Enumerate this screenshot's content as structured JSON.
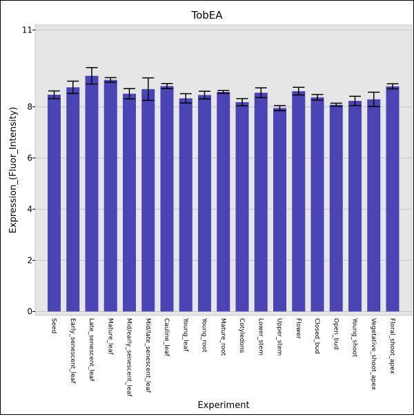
{
  "chart_data": {
    "type": "bar",
    "title": "TobEA",
    "xlabel": "Experiment",
    "ylabel": "Expression_(Fluor_Intensity)",
    "ylim": [
      -0.15,
      11.2
    ],
    "yticks": [
      0,
      2,
      4,
      6,
      8,
      11
    ],
    "grid": true,
    "colors": {
      "bar": "#4a44b4",
      "plot_bg": "#e6e6e6",
      "grid": "#c0c0c0",
      "error": "#000000"
    },
    "categories": [
      "Seed",
      "Early_senescent_leaf",
      "Late_senescent_leaf",
      "Mature_leaf",
      "Mid/early_senescent_leaf",
      "Mid/late_senescent_leaf",
      "Cauline_leaf",
      "Young_leaf",
      "Young_root",
      "Mature_root",
      "Cotyledons",
      "Lower_stem",
      "Upper_stem",
      "Flower",
      "Closed_bud",
      "Open_bud",
      "Young_shoot",
      "Vegetative_shoot_apex",
      "Floral_shoot_apex"
    ],
    "values": [
      8.47,
      8.76,
      9.21,
      9.05,
      8.51,
      8.69,
      8.81,
      8.33,
      8.46,
      8.58,
      8.18,
      8.55,
      7.95,
      8.61,
      8.37,
      8.08,
      8.23,
      8.29,
      8.8
    ],
    "errors": [
      0.15,
      0.24,
      0.32,
      0.09,
      0.2,
      0.44,
      0.1,
      0.18,
      0.15,
      0.06,
      0.14,
      0.19,
      0.1,
      0.15,
      0.11,
      0.06,
      0.18,
      0.28,
      0.1
    ]
  }
}
